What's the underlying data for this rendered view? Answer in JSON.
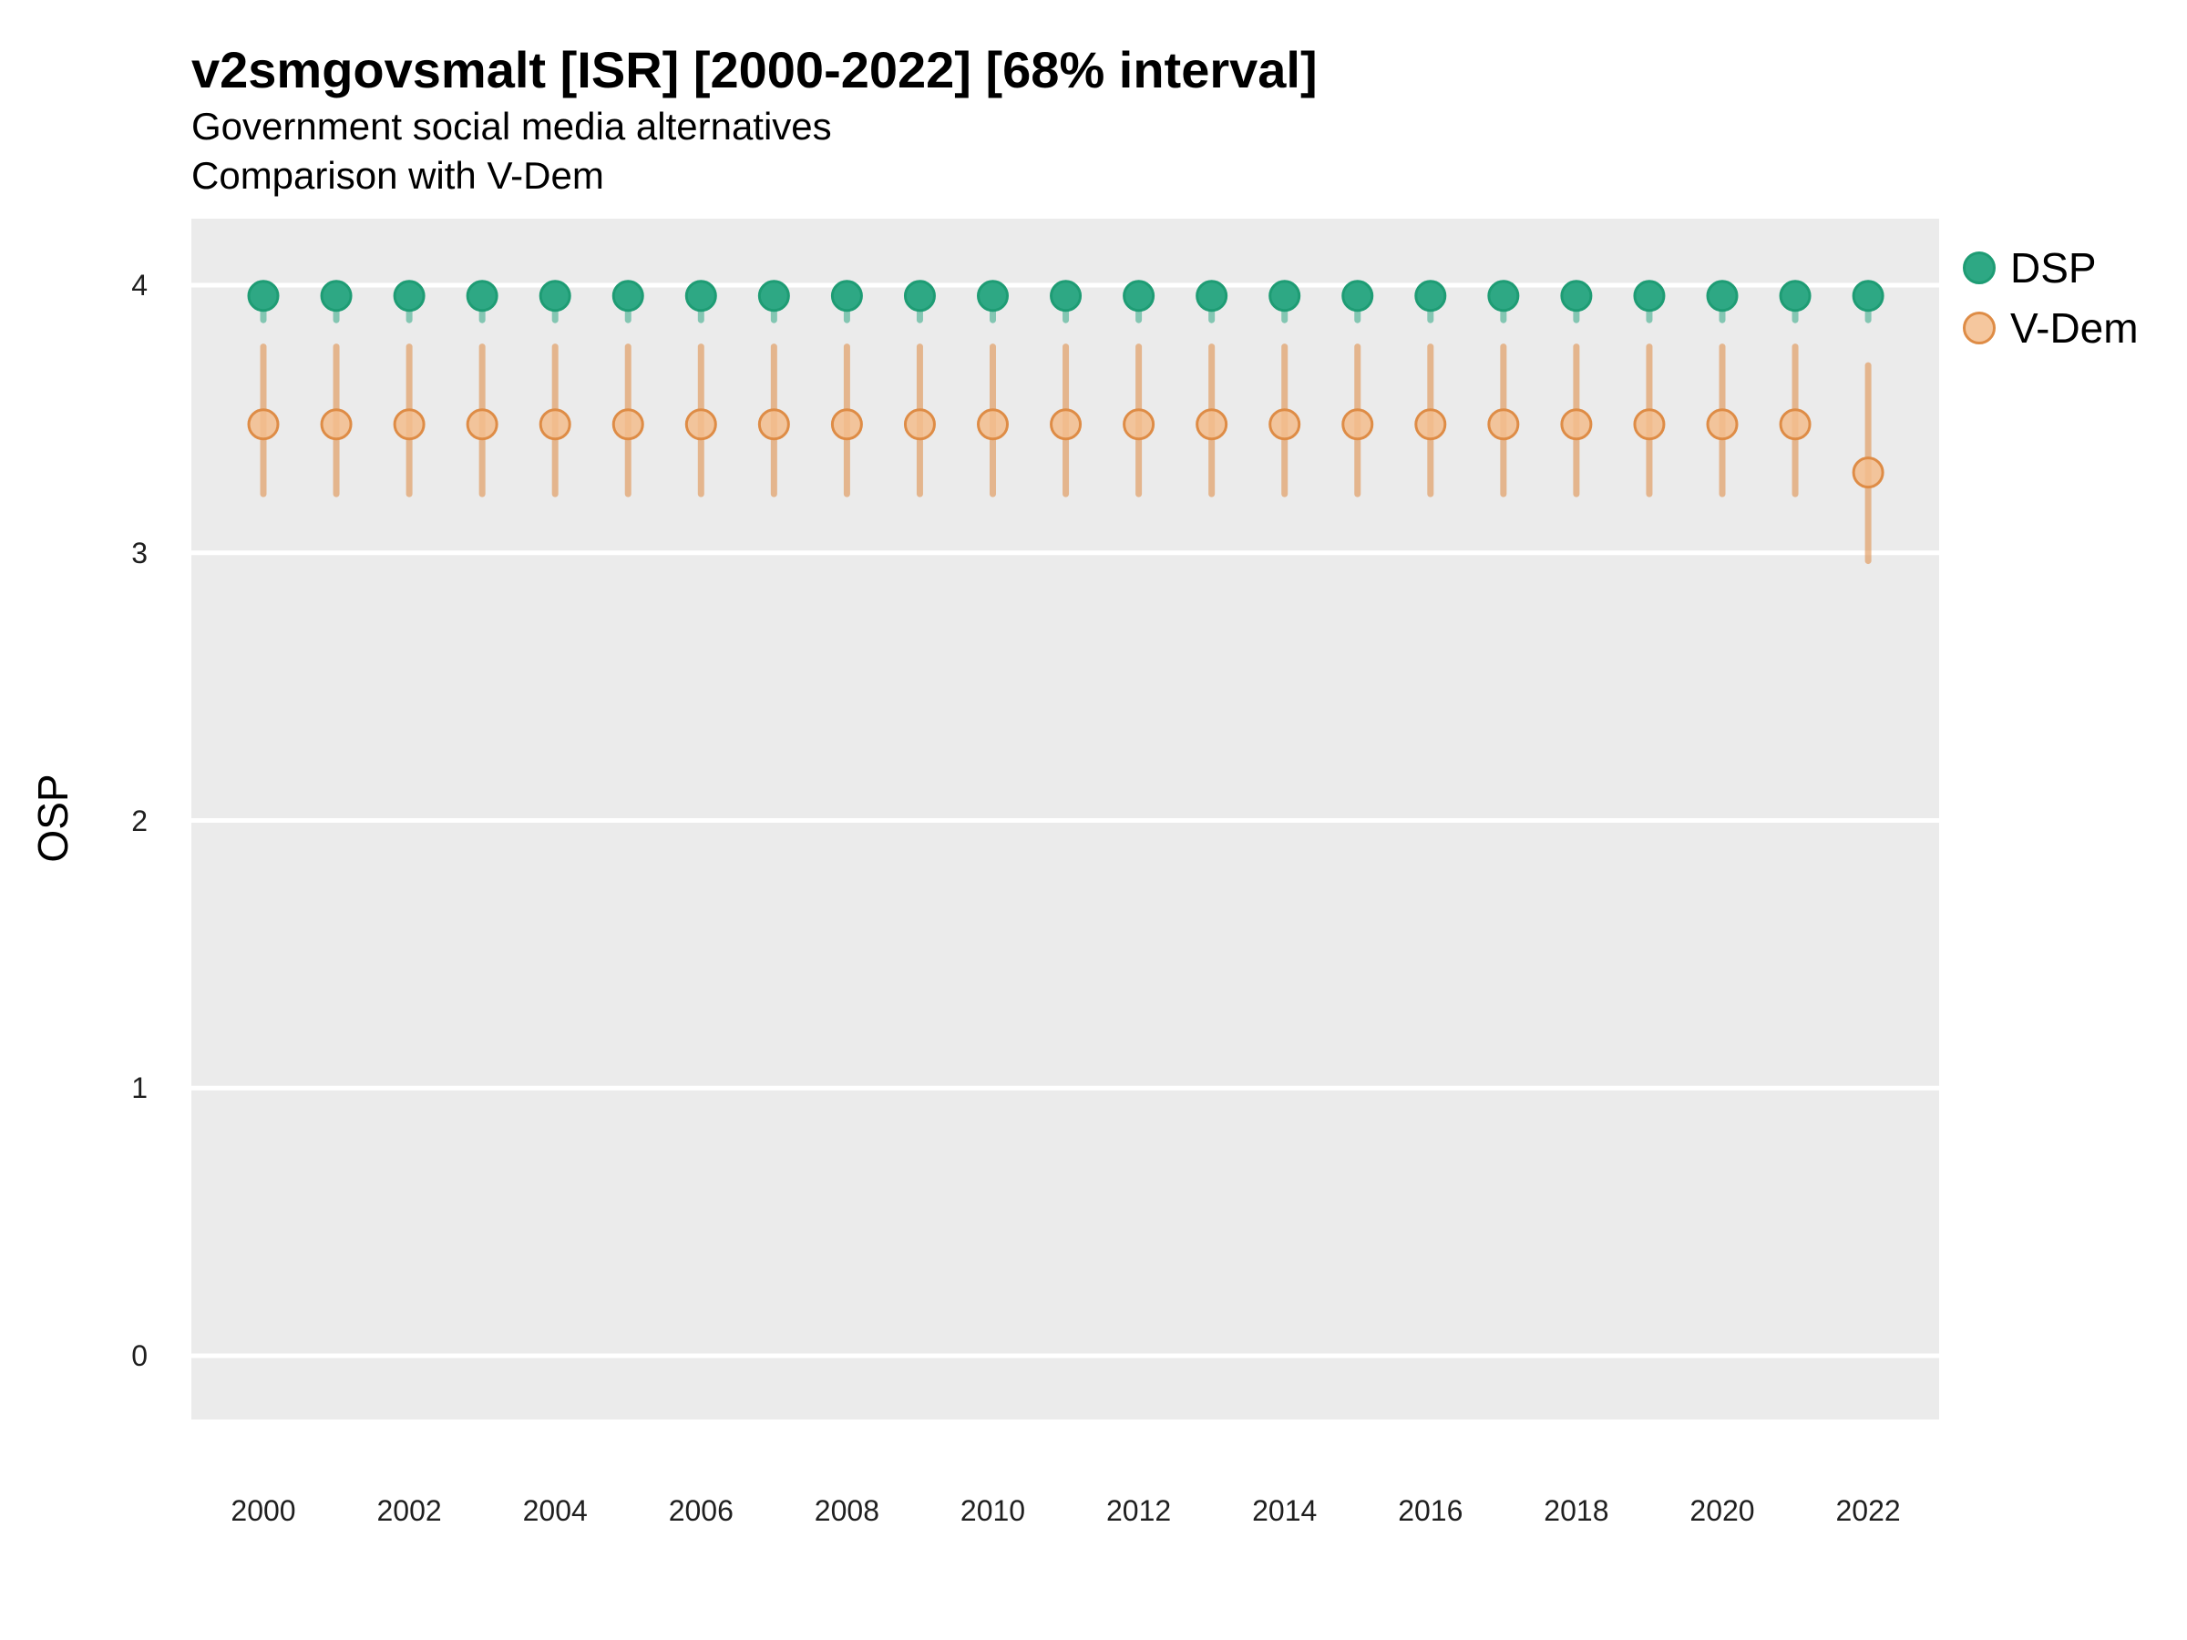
{
  "figure": {
    "background": "#FFFFFF",
    "panel_background": "#EBEBEB",
    "gridline_color": "#FFFFFF"
  },
  "chart_data": {
    "type": "scatter",
    "title": "v2smgovsmalt [ISR] [2000-2022] [68% interval]",
    "subtitle1": "Government social media alternatives",
    "subtitle2": "Comparison with V-Dem",
    "xlabel": "",
    "ylabel": "OSP",
    "grid": "horizontal-only",
    "legend_position": "right",
    "ylim": [
      -0.25,
      4.25
    ],
    "yticks": [
      0,
      1,
      2,
      3,
      4
    ],
    "xtick_labels": [
      2000,
      2002,
      2004,
      2006,
      2008,
      2010,
      2012,
      2014,
      2016,
      2018,
      2020,
      2022
    ],
    "x": [
      2000,
      2001,
      2002,
      2003,
      2004,
      2005,
      2006,
      2007,
      2008,
      2009,
      2010,
      2011,
      2012,
      2013,
      2014,
      2015,
      2016,
      2017,
      2018,
      2019,
      2020,
      2021,
      2022
    ],
    "series": [
      {
        "name": "DSP",
        "marker_fill": "#2EA884",
        "marker_stroke": "#1E9C74",
        "bar_color": "rgba(46,168,132,0.55)",
        "values": [
          3.96,
          3.96,
          3.96,
          3.96,
          3.96,
          3.96,
          3.96,
          3.96,
          3.96,
          3.96,
          3.96,
          3.96,
          3.96,
          3.96,
          3.96,
          3.96,
          3.96,
          3.96,
          3.96,
          3.96,
          3.96,
          3.96,
          3.96
        ],
        "lo": [
          3.87,
          3.87,
          3.87,
          3.87,
          3.87,
          3.87,
          3.87,
          3.87,
          3.87,
          3.87,
          3.87,
          3.87,
          3.87,
          3.87,
          3.87,
          3.87,
          3.87,
          3.87,
          3.87,
          3.87,
          3.87,
          3.87,
          3.87
        ],
        "hi": [
          3.99,
          3.99,
          3.99,
          3.99,
          3.99,
          3.99,
          3.99,
          3.99,
          3.99,
          3.99,
          3.99,
          3.99,
          3.99,
          3.99,
          3.99,
          3.99,
          3.99,
          3.99,
          3.99,
          3.99,
          3.99,
          3.99,
          3.99
        ]
      },
      {
        "name": "V-Dem",
        "marker_fill": "rgba(243,189,141,0.85)",
        "marker_stroke": "#DE8C46",
        "bar_color": "rgba(224,145,79,0.6)",
        "values": [
          3.48,
          3.48,
          3.48,
          3.48,
          3.48,
          3.48,
          3.48,
          3.48,
          3.48,
          3.48,
          3.48,
          3.48,
          3.48,
          3.48,
          3.48,
          3.48,
          3.48,
          3.48,
          3.48,
          3.48,
          3.48,
          3.48,
          3.3
        ],
        "lo": [
          3.22,
          3.22,
          3.22,
          3.22,
          3.22,
          3.22,
          3.22,
          3.22,
          3.22,
          3.22,
          3.22,
          3.22,
          3.22,
          3.22,
          3.22,
          3.22,
          3.22,
          3.22,
          3.22,
          3.22,
          3.22,
          3.22,
          2.97
        ],
        "hi": [
          3.77,
          3.77,
          3.77,
          3.77,
          3.77,
          3.77,
          3.77,
          3.77,
          3.77,
          3.77,
          3.77,
          3.77,
          3.77,
          3.77,
          3.77,
          3.77,
          3.77,
          3.77,
          3.77,
          3.77,
          3.77,
          3.77,
          3.7
        ]
      }
    ]
  }
}
